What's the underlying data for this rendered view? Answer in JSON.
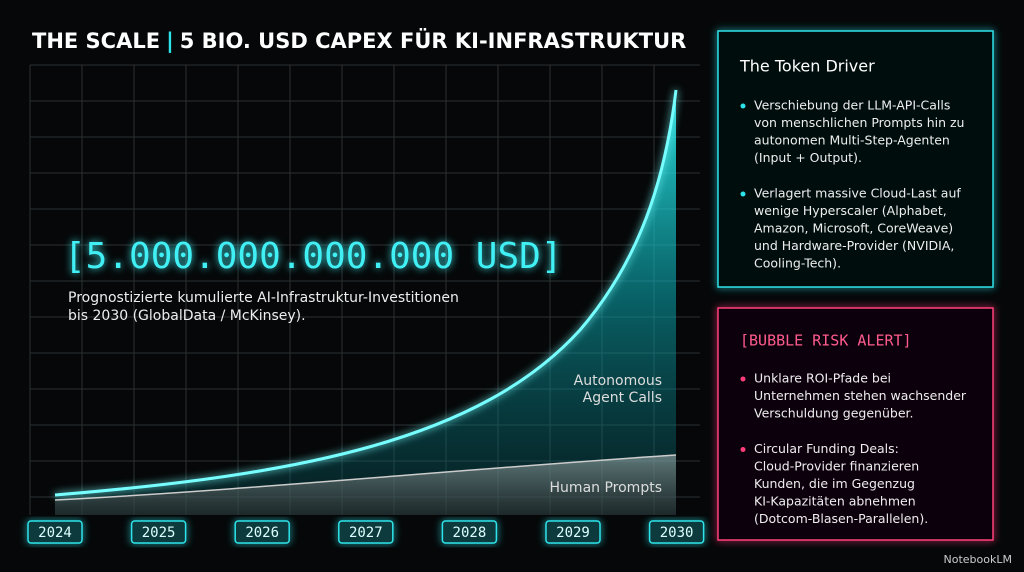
{
  "header": {
    "title_left": "THE SCALE",
    "separator": "|",
    "title_right": "5 BIO. USD CAPEX FÜR KI-INFRASTRUKTUR"
  },
  "chart": {
    "headline": "[5.000.000.000.000 USD]",
    "description": [
      "Prognostizierte kumulierte AI-Infrastruktur-Investitionen",
      "bis 2030 (GlobalData / McKinsey)."
    ],
    "agent_label": [
      "Autonomous",
      "Agent Calls"
    ],
    "human_label": "Human Prompts",
    "years": [
      "2024",
      "2025",
      "2026",
      "2027",
      "2028",
      "2029",
      "2030"
    ]
  },
  "token_panel": {
    "title": "The Token Driver",
    "bullets": [
      [
        "Verschiebung der LLM-API-Calls",
        "von menschlichen Prompts hin zu",
        "autonomen Multi-Step-Agenten",
        "(Input + Output)."
      ],
      [
        "Verlagert massive Cloud-Last auf",
        "wenige Hyperscaler (Alphabet,",
        "Amazon, Microsoft, CoreWeave)",
        "und Hardware-Provider (NVIDIA,",
        "Cooling-Tech)."
      ]
    ]
  },
  "risk_panel": {
    "title": "[BUBBLE RISK ALERT]",
    "bullets": [
      [
        "Unklare ROI-Pfade bei",
        "Unternehmen stehen wachsender",
        "Verschuldung gegenüber."
      ],
      [
        "Circular Funding Deals:",
        "Cloud-Provider finanzieren",
        "Kunden, die im Gegenzug",
        "KI-Kapazitäten abnehmen",
        "(Dotcom-Blasen-Parallelen)."
      ]
    ]
  },
  "watermark": "NotebookLM"
}
